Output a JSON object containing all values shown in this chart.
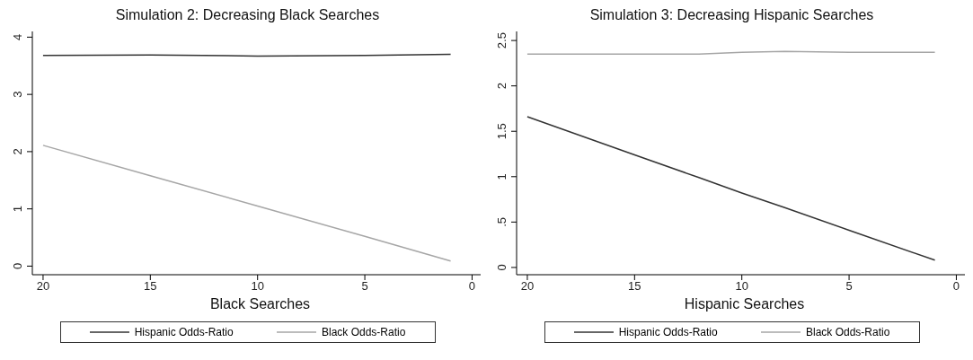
{
  "chart_data": [
    {
      "type": "line",
      "title": "Simulation 2: Decreasing Black Searches",
      "xlabel": "Black Searches",
      "x": [
        20,
        15,
        10,
        5,
        1
      ],
      "xlim": [
        20.5,
        -0.4
      ],
      "xticks": [
        20,
        15,
        10,
        5,
        0
      ],
      "ylim": [
        -0.15,
        4.1
      ],
      "yticks": [
        0,
        1,
        2,
        3,
        4
      ],
      "legend": "bottom",
      "marker": "none",
      "line_style": "solid",
      "series": [
        {
          "name": "Hispanic Odds-Ratio",
          "color": "#333333",
          "values": [
            3.68,
            3.69,
            3.67,
            3.68,
            3.7
          ]
        },
        {
          "name": "Black Odds-Ratio",
          "color": "#a6a6a6",
          "values": [
            2.11,
            1.58,
            1.05,
            0.52,
            0.09
          ]
        }
      ]
    },
    {
      "type": "line",
      "title": "Simulation 3: Decreasing Hispanic Searches",
      "xlabel": "Hispanic Searches",
      "x": [
        20,
        15,
        12,
        10,
        8,
        5,
        1
      ],
      "xlim": [
        20.5,
        -0.4
      ],
      "xticks": [
        20,
        15,
        10,
        5,
        0
      ],
      "ylim": [
        -0.08,
        2.6
      ],
      "yticks": [
        0,
        {
          "value": 0.5,
          "label": ".5"
        },
        1,
        {
          "value": 1.5,
          "label": "1.5"
        },
        2,
        {
          "value": 2.5,
          "label": "2.5"
        }
      ],
      "legend": "bottom",
      "marker": "none",
      "line_style": "solid",
      "series": [
        {
          "name": "Hispanic Odds-Ratio",
          "color": "#333333",
          "values": [
            1.66,
            1.24,
            0.99,
            0.82,
            0.66,
            0.41,
            0.08
          ]
        },
        {
          "name": "Black Odds-Ratio",
          "color": "#a6a6a6",
          "values": [
            2.35,
            2.35,
            2.35,
            2.37,
            2.38,
            2.37,
            2.37
          ]
        }
      ]
    }
  ]
}
